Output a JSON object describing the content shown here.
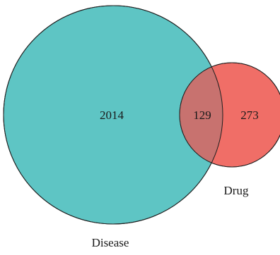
{
  "venn": {
    "sets": [
      {
        "name": "Disease",
        "only_count": "2014",
        "color": "#5ec5c4"
      },
      {
        "name": "Drug",
        "only_count": "273",
        "color": "#f06e67"
      }
    ],
    "intersection": {
      "count": "129",
      "color": "#c8726f"
    },
    "outline_color": "#1f1f1f"
  }
}
